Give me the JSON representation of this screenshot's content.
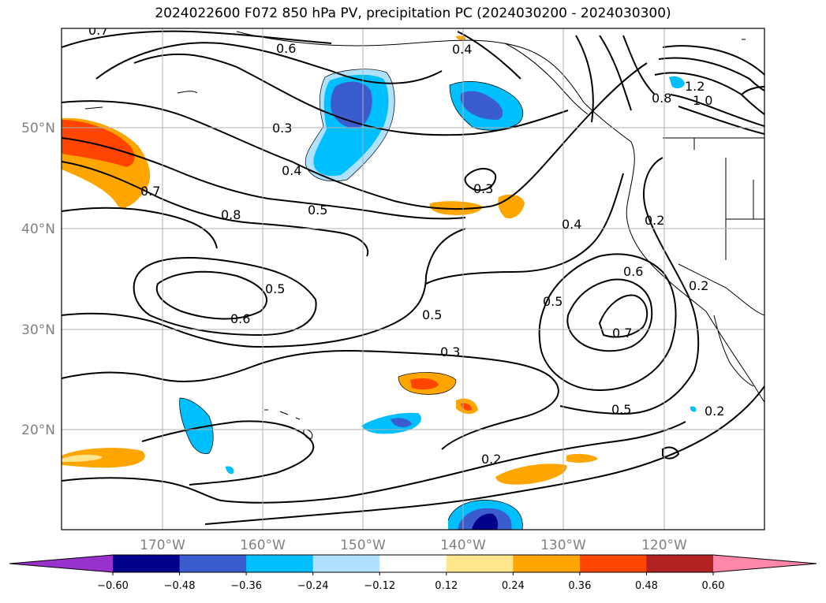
{
  "title": "2024022600 F072 850 hPa PV, precipitation PC (2024030200 - 2024030300)",
  "map": {
    "lat_labels": [
      "50°N",
      "40°N",
      "30°N",
      "20°N"
    ],
    "lon_labels": [
      "170°W",
      "160°W",
      "150°W",
      "140°W",
      "130°W",
      "120°W"
    ],
    "contour_labels": [
      {
        "text": "0.7",
        "id": "c1"
      },
      {
        "text": "0.6",
        "id": "c2"
      },
      {
        "text": "0.4",
        "id": "c3"
      },
      {
        "text": "0.3",
        "id": "c4"
      },
      {
        "text": "0.4",
        "id": "c5"
      },
      {
        "text": "0.7",
        "id": "c6"
      },
      {
        "text": "0.8",
        "id": "c7"
      },
      {
        "text": "0.5",
        "id": "c8"
      },
      {
        "text": "0.3",
        "id": "c9"
      },
      {
        "text": "0.4",
        "id": "c10"
      },
      {
        "text": "0.2",
        "id": "c11"
      },
      {
        "text": "0.5",
        "id": "c12"
      },
      {
        "text": "0.6",
        "id": "c13"
      },
      {
        "text": "0.5",
        "id": "c14"
      },
      {
        "text": "0.6",
        "id": "c15"
      },
      {
        "text": "0.5",
        "id": "c16"
      },
      {
        "text": "0.7",
        "id": "c17"
      },
      {
        "text": "0.3",
        "id": "c18"
      },
      {
        "text": "0.5",
        "id": "c19"
      },
      {
        "text": "0.2",
        "id": "c20"
      },
      {
        "text": "0.2",
        "id": "c21"
      },
      {
        "text": "0.2",
        "id": "c22"
      },
      {
        "text": "1.2",
        "id": "c23"
      },
      {
        "text": "1.0",
        "id": "c24"
      },
      {
        "text": "0.8",
        "id": "c25"
      }
    ]
  },
  "colorbar": {
    "ticks": [
      "−0.60",
      "−0.48",
      "−0.36",
      "−0.24",
      "−0.12",
      "0.12",
      "0.24",
      "0.36",
      "0.48",
      "0.60"
    ],
    "colors": [
      "#9932cc",
      "#00008b",
      "#3a5ccc",
      "#00bfff",
      "#b0e2ff",
      "#ffffff",
      "#ffe68c",
      "#ffa500",
      "#ff4500",
      "#b22222",
      "#ff88aa"
    ]
  }
}
